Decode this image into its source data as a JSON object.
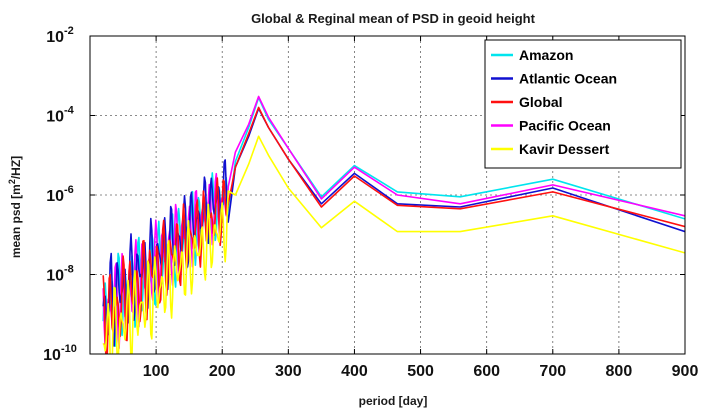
{
  "chart_data": {
    "type": "line",
    "title": "Global & Reginal mean  of PSD in geoid height",
    "xlabel": "period [day]",
    "ylabel_prefix": "mean psd [m",
    "ylabel_sup": "2",
    "ylabel_suffix": "/HZ]",
    "xlim": [
      0,
      900
    ],
    "ylim": [
      1e-10,
      0.01
    ],
    "yscale": "log",
    "grid": true,
    "legend_position": "top-right",
    "x_ticks": [
      100,
      200,
      300,
      400,
      500,
      600,
      700,
      800,
      900
    ],
    "x_tick_labels": [
      "100",
      "200",
      "300",
      "400",
      "500",
      "600",
      "700",
      "800",
      "900"
    ],
    "y_ticks": [
      {
        "base": "10",
        "exp": "-10",
        "value": 1e-10
      },
      {
        "base": "10",
        "exp": "-8",
        "value": 1e-08
      },
      {
        "base": "10",
        "exp": "-6",
        "value": 1e-06
      },
      {
        "base": "10",
        "exp": "-4",
        "value": 0.0001
      },
      {
        "base": "10",
        "exp": "-2",
        "value": 0.01
      }
    ],
    "series": [
      {
        "name": "Amazon",
        "color": "#00e5ee",
        "x": [
          220,
          240,
          255,
          270,
          300,
          350,
          400,
          465,
          560,
          700,
          900
        ],
        "y": [
          7e-06,
          5e-05,
          0.00028,
          8e-05,
          1.5e-05,
          9e-07,
          5.5e-06,
          1.2e-06,
          9e-07,
          2.5e-06,
          2.5e-07
        ]
      },
      {
        "name": "Atlantic Ocean",
        "color": "#1010d0",
        "x": [
          220,
          240,
          255,
          270,
          300,
          350,
          400,
          465,
          560,
          700,
          900
        ],
        "y": [
          5e-06,
          3e-05,
          0.00015,
          5e-05,
          8e-06,
          6e-07,
          3.5e-06,
          6e-07,
          5e-07,
          1.5e-06,
          1.2e-07
        ]
      },
      {
        "name": "Global",
        "color": "#ff1010",
        "x": [
          220,
          240,
          255,
          270,
          300,
          350,
          400,
          465,
          560,
          700,
          900
        ],
        "y": [
          5e-06,
          3.5e-05,
          0.00016,
          5e-05,
          8e-06,
          5e-07,
          3e-06,
          5.5e-07,
          4.5e-07,
          1.2e-06,
          1.6e-07
        ]
      },
      {
        "name": "Pacific Ocean",
        "color": "#ff00ff",
        "x": [
          220,
          240,
          255,
          270,
          300,
          350,
          400,
          465,
          560,
          700,
          900
        ],
        "y": [
          1.2e-05,
          6e-05,
          0.0003,
          9e-05,
          1.5e-05,
          8e-07,
          5e-06,
          1e-06,
          6e-07,
          1.8e-06,
          3e-07
        ]
      },
      {
        "name": "Kavir Dessert",
        "color": "#ffff00",
        "x": [
          220,
          240,
          255,
          270,
          300,
          350,
          400,
          465,
          560,
          700,
          900
        ],
        "y": [
          1e-06,
          6e-06,
          3e-05,
          1e-05,
          1.5e-06,
          1.5e-07,
          7e-07,
          1.2e-07,
          1.2e-07,
          3e-07,
          3.5e-08
        ]
      }
    ]
  }
}
